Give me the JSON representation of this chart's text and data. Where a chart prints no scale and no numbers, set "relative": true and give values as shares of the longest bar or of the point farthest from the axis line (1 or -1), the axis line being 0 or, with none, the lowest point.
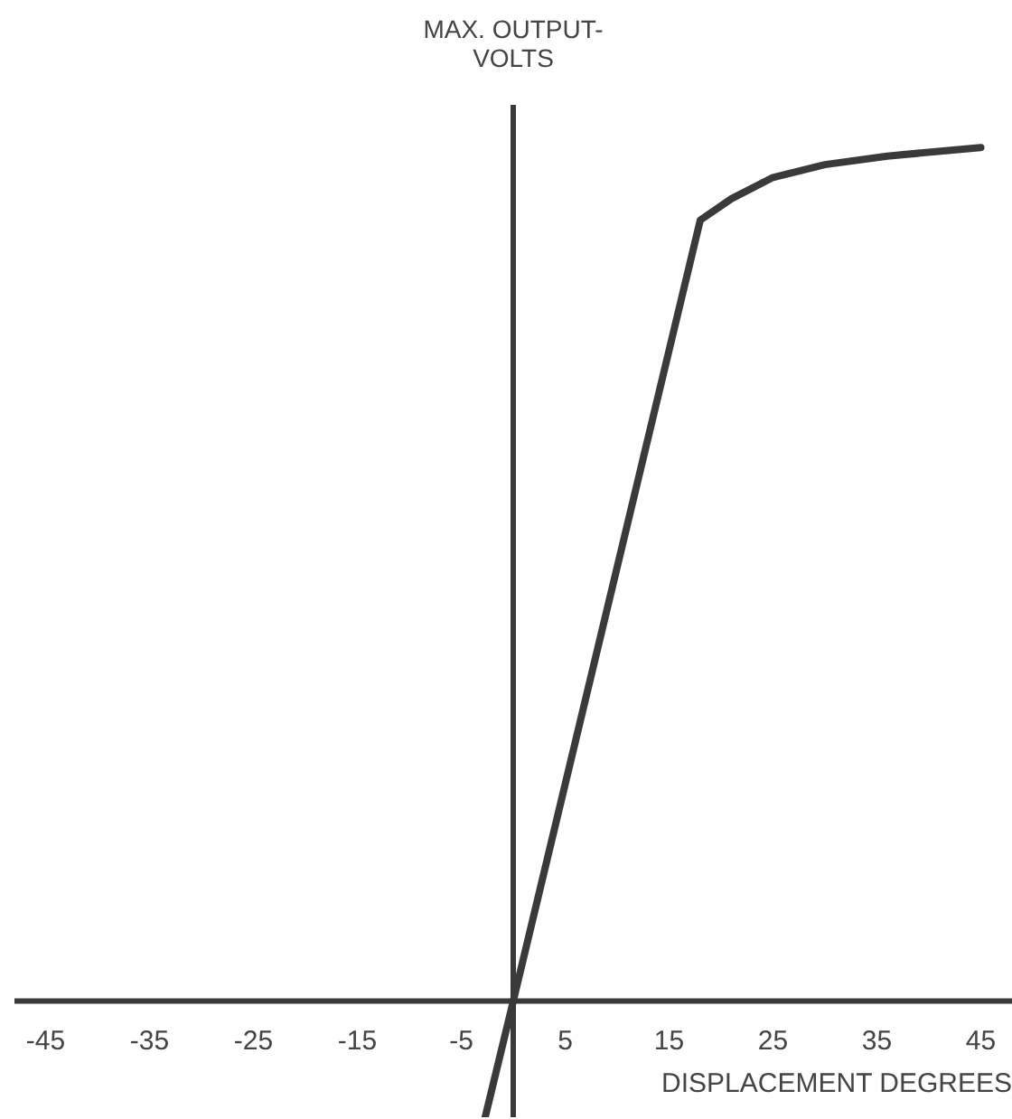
{
  "chart_data": {
    "type": "line",
    "relative": true,
    "ylabel": "MAX. OUTPUT-\nVOLTS",
    "xlabel": "DISPLACEMENT DEGREES",
    "x": [
      -2.7,
      0,
      18,
      21,
      25,
      30,
      36,
      45
    ],
    "values": [
      -0.136,
      0,
      0.915,
      0.94,
      0.965,
      0.98,
      0.99,
      1
    ],
    "color": "#3a3a3a",
    "marker": "none",
    "line_style": "solid",
    "xlim": [
      -48,
      48
    ],
    "xticks": [
      -45,
      -35,
      -25,
      -15,
      -5,
      5,
      15,
      25,
      35,
      45
    ]
  }
}
